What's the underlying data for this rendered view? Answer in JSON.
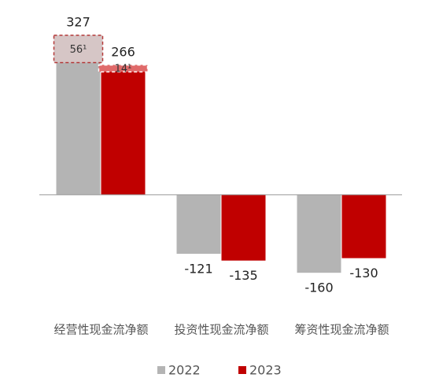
{
  "chart_data": {
    "type": "bar",
    "categories": [
      "经营性现金流净额",
      "投资性现金流净额",
      "筹资性现金流净额"
    ],
    "series": [
      {
        "name": "2022",
        "color": "#b4b4b4",
        "values": [
          327,
          -121,
          -160
        ]
      },
      {
        "name": "2023",
        "color": "#c00000",
        "values": [
          266,
          -135,
          -130
        ]
      }
    ],
    "segments": [
      {
        "series": 0,
        "category": 0,
        "value": 56,
        "label": "56¹",
        "color": "#d6c6c6",
        "border": "#b53a3a"
      },
      {
        "series": 1,
        "category": 0,
        "value": 14,
        "label": "14¹",
        "color": "#e06a6a",
        "border": "#ffffff"
      }
    ],
    "ylim": [
      -200,
      380
    ],
    "legend": "bottom"
  }
}
